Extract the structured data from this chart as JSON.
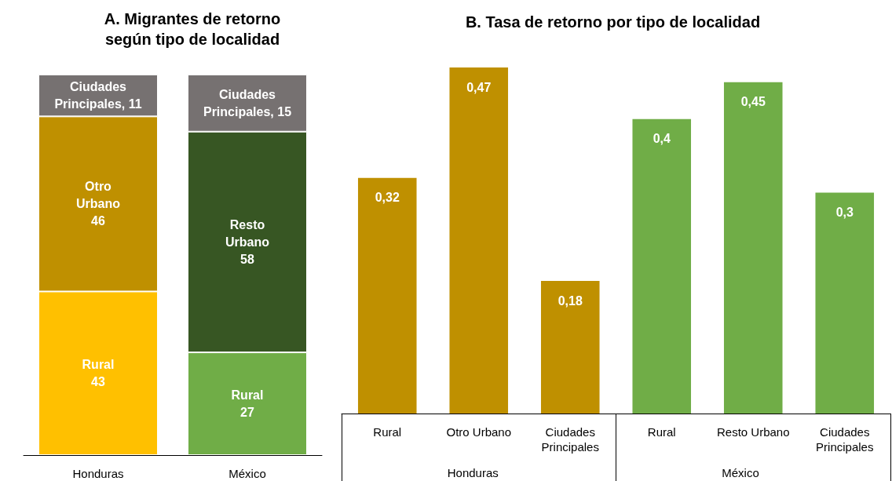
{
  "chart_data": [
    {
      "type": "bar",
      "title": "A. Migrantes de retorno\nsegún tipo de localidad",
      "categories": [
        "Honduras",
        "México"
      ],
      "stacked": true,
      "series": [
        {
          "values": [
            43,
            27
          ],
          "colors": [
            "#ffc000",
            "#70ad47"
          ],
          "value_labels": [
            "Rural\n43",
            "Rural\n27"
          ]
        },
        {
          "values": [
            46,
            58
          ],
          "colors": [
            "#bf9000",
            "#375623"
          ],
          "value_labels": [
            "Otro\nUrbano\n46",
            "Resto\nUrbano\n58"
          ]
        },
        {
          "values": [
            11,
            15
          ],
          "colors": [
            "#767171",
            "#767171"
          ],
          "value_labels": [
            "Ciudades\nPrincipales, 11",
            "Ciudades\nPrincipales, 15"
          ]
        }
      ]
    },
    {
      "type": "bar",
      "title": "B. Tasa de retorno por tipo de localidad",
      "categories": [
        "Rural",
        "Otro Urbano",
        "Ciudades\nPrincipales",
        "Rural",
        "Resto Urbano",
        "Ciudades\nPrincipales"
      ],
      "values": [
        0.32,
        0.47,
        0.18,
        0.4,
        0.45,
        0.3
      ],
      "colors": [
        "#bf9000",
        "#bf9000",
        "#bf9000",
        "#70ad47",
        "#70ad47",
        "#70ad47"
      ],
      "value_labels": [
        "0,32",
        "0,47",
        "0,18",
        "0,4",
        "0,45",
        "0,3"
      ],
      "annotations": [
        "Honduras",
        "México"
      ]
    }
  ]
}
